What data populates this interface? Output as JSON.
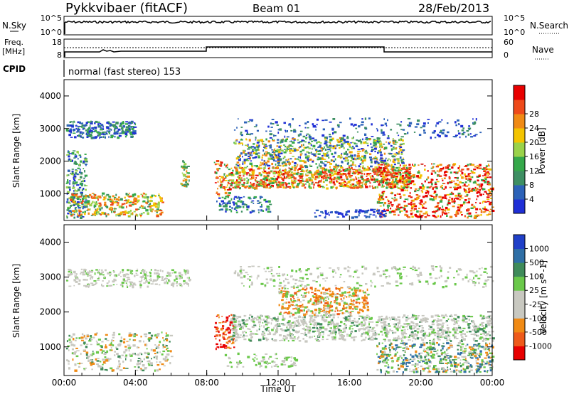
{
  "header": {
    "station": "Pykkvibaer (fitACF)",
    "beam": "Beam 01",
    "date": "28/Feb/2013"
  },
  "strip_panels": {
    "nsky_label": "N.Sky",
    "nsky_ticks": [
      "10^5",
      "10^0"
    ],
    "nsearch_label": "N.Search",
    "nsearch_ticks": [
      "10^5",
      "10^0"
    ],
    "freq_label": "Freq.",
    "freq_unit": "[MHz]",
    "freq_ticks": [
      "18",
      "8"
    ],
    "nave_label": "Nave",
    "nave_ticks": [
      "60",
      "0"
    ],
    "cpid_label": "CPID",
    "cpid_text": "normal (fast stereo) 153"
  },
  "colors": {
    "power_scale": [
      "#1f2fd6",
      "#2c62b8",
      "#3e8f63",
      "#35a84a",
      "#9ad24a",
      "#f3c400",
      "#f08a14",
      "#ee4a1a",
      "#e80000"
    ],
    "velocity_scale": [
      "#2040c8",
      "#2f6fa6",
      "#3f8b5a",
      "#6ac84a",
      "#c8c8c0",
      "#c8c8c0",
      "#f08a14",
      "#ee5a1a",
      "#e80000"
    ]
  },
  "chart_data": [
    {
      "type": "heatmap",
      "name": "power",
      "xlabel": "",
      "ylabel": "Slant Range [km]",
      "xlim": [
        "00:00",
        "24:00"
      ],
      "ylim": [
        180,
        4500
      ],
      "yticks": [
        "1000",
        "2000",
        "3000",
        "4000"
      ],
      "colorbar": {
        "label": "Power [dB]",
        "range": [
          0,
          30
        ],
        "ticks": [
          "4",
          "8",
          "12",
          "16",
          "20",
          "24",
          "28"
        ]
      }
    },
    {
      "type": "heatmap",
      "name": "velocity",
      "xlabel": "Time UT",
      "ylabel": "Slant Range [km]",
      "xlim": [
        "00:00",
        "24:00"
      ],
      "xticks": [
        "00:00",
        "04:00",
        "08:00",
        "12:00",
        "16:00",
        "20:00",
        "00:00"
      ],
      "ylim": [
        180,
        4500
      ],
      "yticks": [
        "1000",
        "2000",
        "3000",
        "4000"
      ],
      "colorbar": {
        "label": "Velocity [m s^-1]",
        "ticks": [
          "1000",
          "500",
          "100",
          "25",
          "-25",
          "-100",
          "-500",
          "-1000"
        ]
      }
    }
  ]
}
